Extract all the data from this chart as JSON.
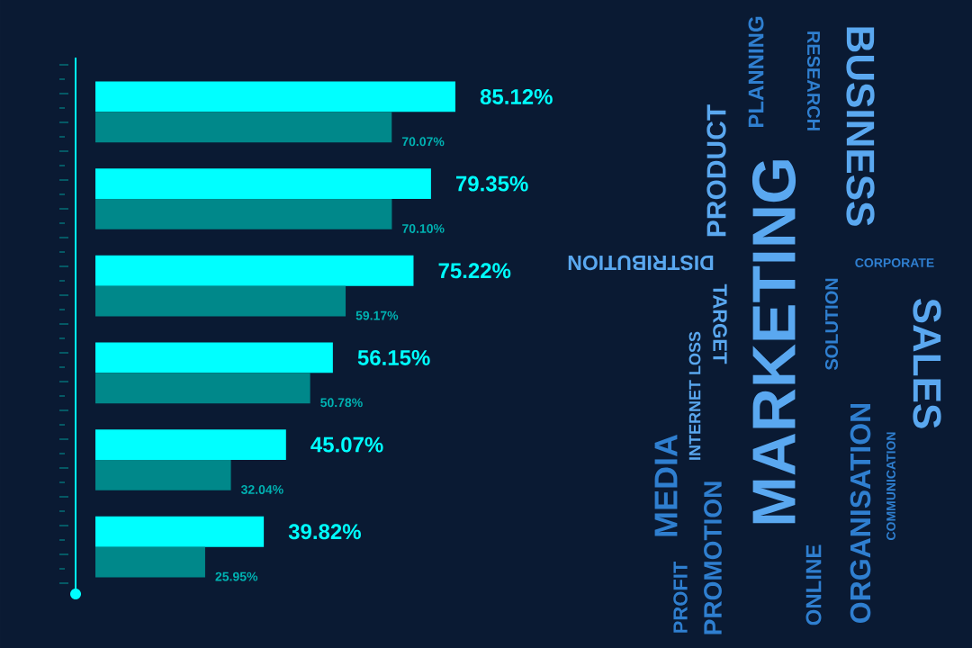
{
  "chart_data": {
    "type": "bar",
    "orientation": "horizontal",
    "categories": [
      null,
      null,
      null,
      null,
      null,
      null
    ],
    "series": [
      {
        "color": "#00ffff",
        "values": [
          85.12,
          79.35,
          75.22,
          56.15,
          45.07,
          39.82
        ],
        "value_labels": [
          "85.12%",
          "79.35%",
          "75.22%",
          "56.15%",
          "45.07%",
          "39.82%"
        ]
      },
      {
        "color": "#00888a",
        "values": [
          70.07,
          70.1,
          59.17,
          50.78,
          32.04,
          25.95
        ],
        "value_labels": [
          "70.07%",
          "70.10%",
          "59.17%",
          "50.78%",
          "32.04%",
          "25.95%"
        ]
      }
    ],
    "annotations": [
      "PLANNING",
      "RESEARCH",
      "BUSINESS",
      "PRODUCT",
      "CORPORATE",
      "DISTRIBUTION",
      "TARGET",
      "MARKETING",
      "SOLUTION",
      "SALES",
      "INTERNET LOSS",
      "ORGANISATION",
      "COMMUNICATION",
      "MEDIA",
      "PROFIT",
      "PROMOTION",
      "ONLINE"
    ]
  }
}
